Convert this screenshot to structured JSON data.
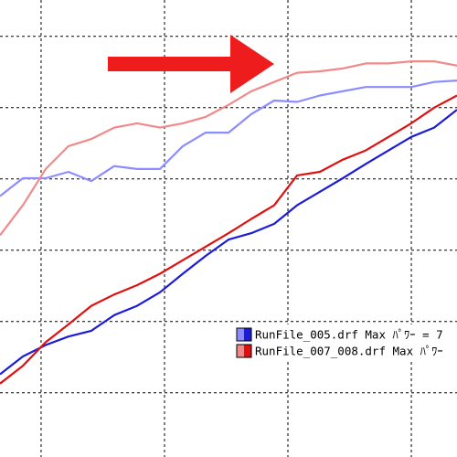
{
  "chart_data": {
    "type": "line",
    "x": [
      -0.333,
      -0.148,
      0.037,
      0.222,
      0.407,
      0.593,
      0.778,
      0.963,
      1.148,
      1.333,
      1.519,
      1.704,
      1.889,
      2.074,
      2.259,
      2.444,
      2.63,
      2.815,
      3.0,
      3.185,
      3.37
    ],
    "series": [
      {
        "color": "#8c8cff",
        "values": [
          2.76,
          3.01,
          3.01,
          3.1,
          2.97,
          3.18,
          3.14,
          3.14,
          3.46,
          3.65,
          3.65,
          3.91,
          4.1,
          4.08,
          4.17,
          4.23,
          4.29,
          4.29,
          4.29,
          4.36,
          4.38
        ]
      },
      {
        "name": "RunFile_005.drf Max ﾊﾟﾜｰ = 7",
        "color": "#1c1cd8",
        "values": [
          0.26,
          0.51,
          0.67,
          0.79,
          0.87,
          1.09,
          1.22,
          1.41,
          1.67,
          1.92,
          2.15,
          2.24,
          2.37,
          2.63,
          2.82,
          3.01,
          3.21,
          3.4,
          3.59,
          3.72,
          3.97
        ]
      },
      {
        "color": "#f08a8a",
        "values": [
          2.21,
          2.63,
          3.14,
          3.46,
          3.56,
          3.72,
          3.78,
          3.72,
          3.78,
          3.87,
          4.04,
          4.23,
          4.36,
          4.49,
          4.51,
          4.55,
          4.62,
          4.62,
          4.65,
          4.65,
          4.59
        ]
      },
      {
        "name": "RunFile_007_008.drf Max ﾊﾟﾜｰ",
        "color": "#e01010",
        "values": [
          0.13,
          0.38,
          0.71,
          0.96,
          1.22,
          1.38,
          1.51,
          1.67,
          1.86,
          2.05,
          2.24,
          2.44,
          2.63,
          3.05,
          3.1,
          3.27,
          3.4,
          3.59,
          3.78,
          4.0,
          4.17
        ]
      }
    ],
    "xlim": [
      -0.333,
      3.37
    ],
    "ylim": [
      -0.9,
      5.51
    ],
    "xticks": [
      0,
      1,
      2,
      3
    ],
    "yticks": [
      0,
      1,
      2,
      3,
      4,
      5
    ],
    "grid": true
  }
}
